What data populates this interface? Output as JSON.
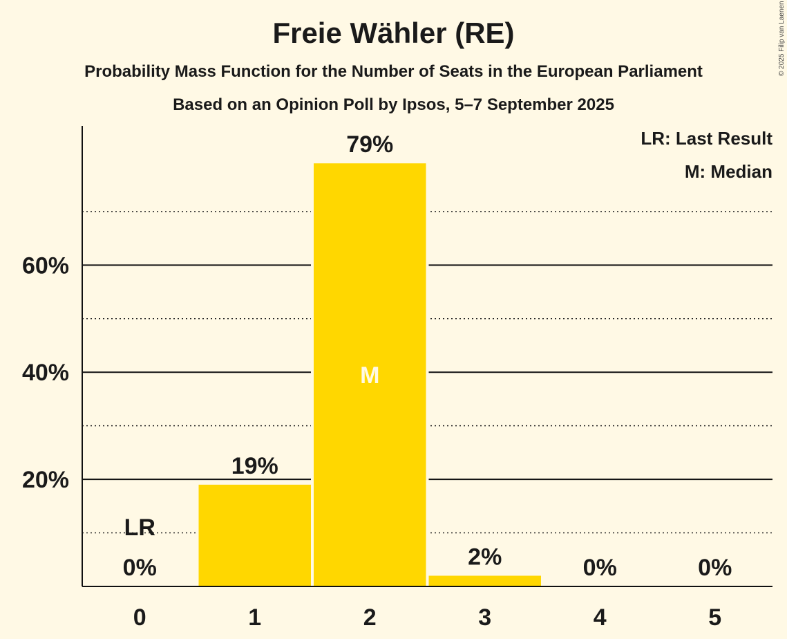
{
  "header": {
    "title": "Freie Wähler (RE)",
    "subtitle": "Probability Mass Function for the Number of Seats in the European Parliament",
    "source": "Based on an Opinion Poll by Ipsos, 5–7 September 2025"
  },
  "copyright": "© 2025 Filip van Laenen",
  "legend": {
    "lr": "LR: Last Result",
    "m": "M: Median"
  },
  "colors": {
    "bar": "#FFD700",
    "background": "#FFF9E5",
    "median_label": "#FFF9E5"
  },
  "chart_data": {
    "type": "bar",
    "categories": [
      "0",
      "1",
      "2",
      "3",
      "4",
      "5"
    ],
    "values": [
      0,
      19,
      79,
      2,
      0,
      0
    ],
    "value_labels": [
      "0%",
      "19%",
      "79%",
      "2%",
      "0%",
      "0%"
    ],
    "ylim": [
      0,
      86
    ],
    "y_ticks": [
      20,
      40,
      60
    ],
    "y_tick_labels": [
      "20%",
      "40%",
      "60%"
    ],
    "y_minor_gridlines": [
      10,
      30,
      50,
      70
    ],
    "last_result_category": "0",
    "last_result_label": "LR",
    "median_category": "2",
    "median_label": "M",
    "legend_position": "top-right",
    "grid": true
  }
}
